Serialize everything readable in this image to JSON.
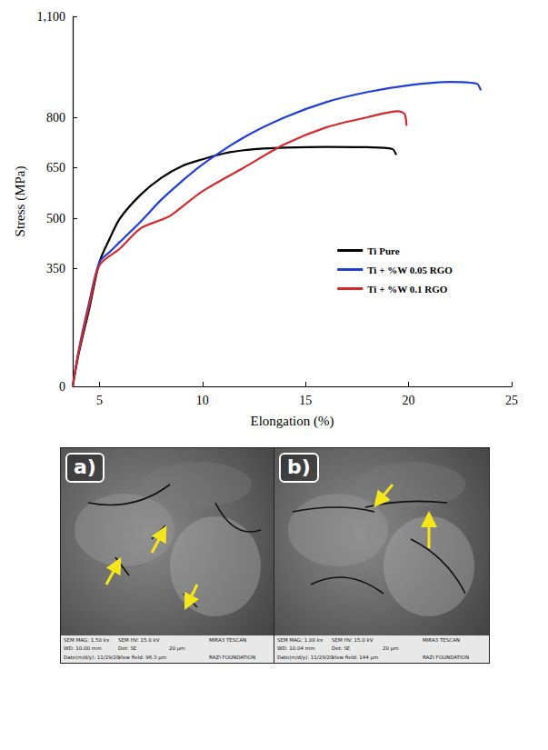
{
  "chart_data": {
    "type": "line",
    "xlabel": "Elongation (%)",
    "ylabel": "Stress (MPa)",
    "xlim": [
      3.7,
      25
    ],
    "xticks": [
      5,
      10,
      15,
      20,
      25
    ],
    "ylim": [
      0,
      1100
    ],
    "yticks": [
      0,
      350,
      500,
      650,
      800,
      1100
    ],
    "grid": false,
    "legend": "right",
    "series": [
      {
        "name": "Ti Pure",
        "color": "#000000",
        "x": [
          3.7,
          4,
          4.5,
          5,
          5.5,
          6,
          7,
          8,
          9,
          10,
          11,
          12,
          13,
          14,
          16,
          18,
          19.2,
          19.4
        ],
        "values": [
          0,
          100,
          230,
          370,
          440,
          500,
          570,
          620,
          655,
          675,
          692,
          702,
          707,
          710,
          712,
          711,
          706,
          688
        ]
      },
      {
        "name": "Ti + %W 0.05 RGO",
        "color": "#1f3fd6",
        "x": [
          3.7,
          4,
          4.5,
          5,
          5.5,
          6,
          7,
          8,
          9,
          10,
          12,
          14,
          16,
          18,
          20,
          22,
          23.3,
          23.5
        ],
        "values": [
          0,
          110,
          250,
          370,
          400,
          430,
          490,
          555,
          610,
          660,
          740,
          800,
          845,
          875,
          895,
          905,
          900,
          880
        ]
      },
      {
        "name": "Ti + %W 0.1 RGO",
        "color": "#d42a2a",
        "x": [
          3.7,
          4,
          4.5,
          5,
          6,
          7,
          8,
          8.5,
          10,
          12,
          14,
          16,
          18,
          19.5,
          19.8,
          19.9
        ],
        "values": [
          0,
          105,
          240,
          360,
          410,
          470,
          495,
          510,
          580,
          650,
          720,
          770,
          800,
          818,
          810,
          775
        ]
      }
    ]
  },
  "panels": [
    {
      "label": "a)",
      "info": [
        "SEM MAG: 1.50 kx",
        "SEM HV: 15.0 kV",
        "",
        "MIRA3 TESCAN",
        "WD: 10.00 mm",
        "Det: SE",
        "20 µm",
        "",
        "Date(m/d/y): 11/29/20",
        "View field: 96.3 µm",
        "",
        "RAZI FOUNDATION"
      ]
    },
    {
      "label": "b)",
      "info": [
        "SEM MAG: 1.00 kx",
        "SEM HV: 15.0 kV",
        "",
        "MIRA3 TESCAN",
        "WD: 10.04 mm",
        "Det: SE",
        "20 µm",
        "",
        "Date(m/d/y): 11/29/20",
        "View field: 144 µm",
        "",
        "RAZI FOUNDATION"
      ]
    }
  ]
}
